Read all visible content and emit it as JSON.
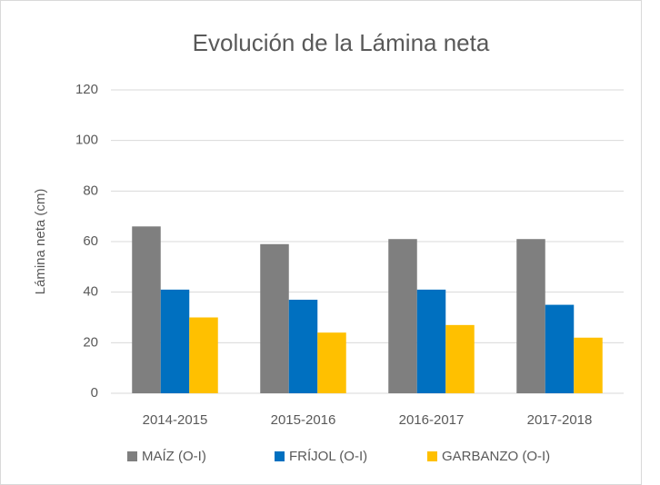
{
  "chart_data": {
    "type": "bar",
    "title": "Evolución de la Lámina neta",
    "y_label": "Lámina neta (cm)",
    "categories": [
      "2014-2015",
      "2015-2016",
      "2016-2017",
      "2017-2018"
    ],
    "series": [
      {
        "name": "MAÍZ (O-I)",
        "color": "#7f7f7f",
        "values": [
          66,
          59,
          61,
          61
        ]
      },
      {
        "name": "FRÍJOL (O-I)",
        "color": "#0070c0",
        "values": [
          41,
          37,
          41,
          35
        ]
      },
      {
        "name": "GARBANZO (O-I)",
        "color": "#ffc000",
        "values": [
          30,
          24,
          27,
          22
        ]
      }
    ],
    "ylim": [
      0,
      120
    ],
    "yticks": [
      0,
      20,
      40,
      60,
      80,
      100,
      120
    ],
    "grid": true,
    "legend": "bottom"
  }
}
